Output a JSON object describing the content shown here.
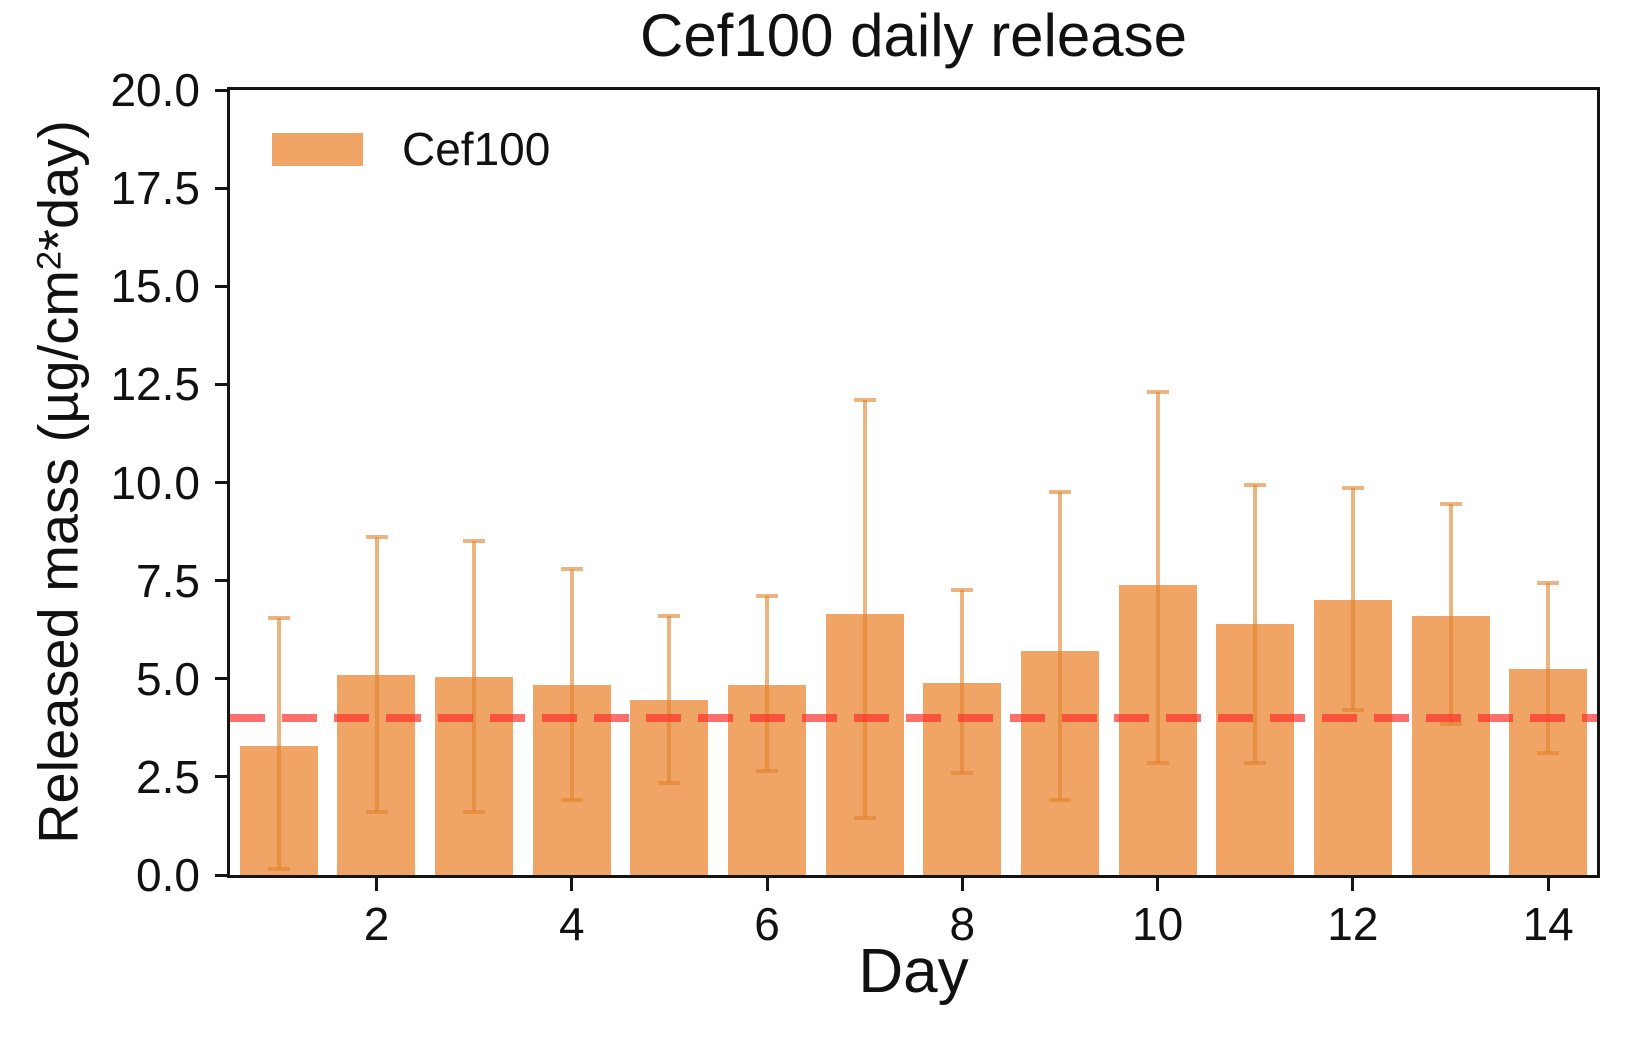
{
  "figure": {
    "title": "Cef100 daily release",
    "xlabel": "Day",
    "ylabel": {
      "pre": "Released mass (µg/cm",
      "sup": "2",
      "post": "*day)"
    },
    "legend": {
      "label": "Cef100"
    }
  },
  "colors": {
    "bar": "#F0A566",
    "error_bar": "rgba(224,130,45,0.6)",
    "threshold_line": "rgba(252,45,40,0.68)",
    "axis": "#141414",
    "background": "#ffffff"
  },
  "chart_data": {
    "type": "bar",
    "title": "Cef100 daily release",
    "xlabel": "Day",
    "ylabel": "Released mass (µg/cm²*day)",
    "ylim": [
      0,
      20
    ],
    "xticks": [
      2,
      4,
      6,
      8,
      10,
      12,
      14
    ],
    "yticks": [
      "0.0",
      "2.5",
      "5.0",
      "7.5",
      "10.0",
      "12.5",
      "15.0",
      "17.5",
      "20.0"
    ],
    "grid": false,
    "legend_position": "upper left",
    "bar_width_fraction": 0.8,
    "series": [
      {
        "name": "Cef100",
        "x": [
          1,
          2,
          3,
          4,
          5,
          6,
          7,
          8,
          9,
          10,
          11,
          12,
          13,
          14
        ],
        "values": [
          3.3,
          5.1,
          5.05,
          4.85,
          4.45,
          4.85,
          6.65,
          4.9,
          5.7,
          7.4,
          6.4,
          7.0,
          6.6,
          5.25
        ],
        "whisker_top": [
          6.55,
          8.6,
          8.5,
          7.8,
          6.6,
          7.1,
          12.1,
          7.25,
          9.75,
          12.3,
          9.95,
          9.85,
          9.45,
          7.45
        ],
        "whisker_bottom": [
          0.15,
          1.6,
          1.6,
          1.9,
          2.35,
          2.65,
          1.45,
          2.6,
          1.9,
          2.85,
          2.85,
          4.2,
          3.85,
          3.1
        ]
      }
    ],
    "threshold_line": {
      "y": 4.0,
      "style": "dashed",
      "color": "red"
    }
  }
}
